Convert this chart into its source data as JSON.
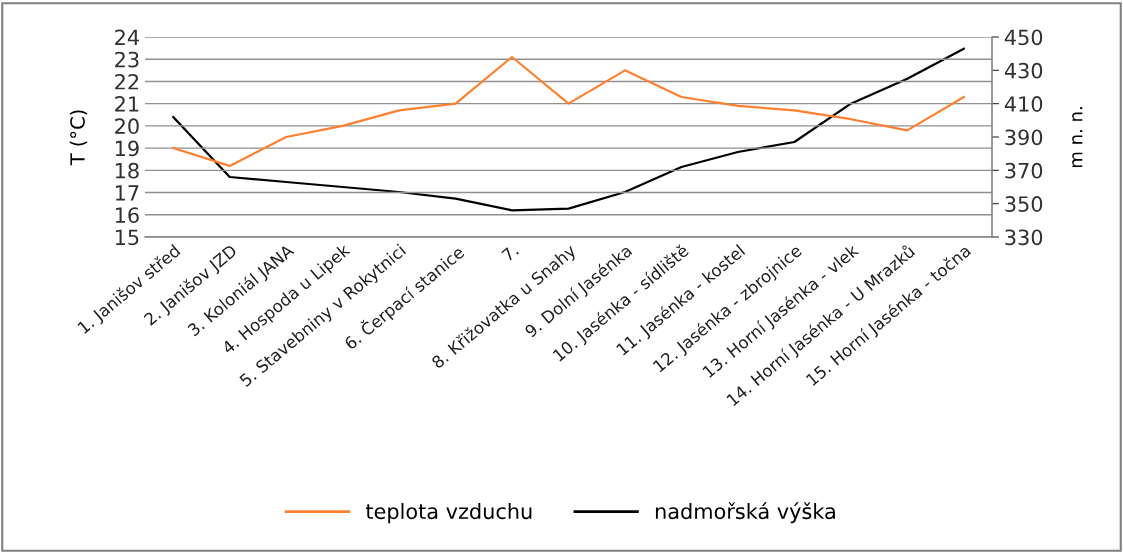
{
  "chart_data": {
    "type": "line",
    "categories": [
      "1. Janišov střed",
      "2. Janišov JZD",
      "3. Koloniál JANA",
      "4. Hospoda u Lipek",
      "5. Stavebniny v Rokytnici",
      "6. Čerpací stanice",
      "7.",
      "8. Křižovatka u Snahy",
      "9. Dolní Jasénka",
      "10. Jasénka - sídliště",
      "11. Jasénka - kostel",
      "12. Jasénka - zbrojnice",
      "13. Horní Jasénka - vlek",
      "14. Horní Jasénka - U Mrazků",
      "15. Horní Jasénka - točna"
    ],
    "series": [
      {
        "name": "teplota vzduchu",
        "color": "#ff8030",
        "values": [
          19.0,
          18.2,
          19.5,
          20.0,
          20.7,
          21.0,
          23.1,
          21.0,
          22.5,
          21.3,
          20.9,
          20.7,
          20.3,
          19.8,
          21.3
        ]
      },
      {
        "name": "nadmořská výška",
        "color": "#000000",
        "axis": "y2",
        "values": [
          402,
          366,
          363,
          360,
          357,
          353,
          346,
          347,
          357,
          372,
          381,
          387,
          410,
          425,
          443
        ]
      }
    ],
    "ylabel": "T (°C)",
    "y2label": "m n. n.",
    "ylim": [
      15,
      24
    ],
    "yticks": [
      15,
      16,
      17,
      18,
      19,
      20,
      21,
      22,
      23,
      24
    ],
    "y2lim": [
      330,
      450
    ],
    "y2ticks": [
      330,
      350,
      370,
      390,
      410,
      430,
      450
    ],
    "grid": "y",
    "legend": "bottom"
  }
}
